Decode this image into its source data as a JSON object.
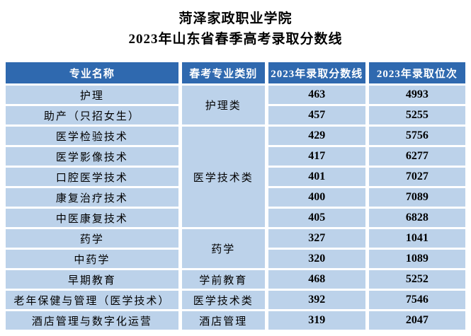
{
  "title": {
    "line1": "菏泽家政职业学院",
    "line2": "2023年山东省春季高考录取分数线"
  },
  "colors": {
    "header_bg": "#2F69AF",
    "header_text": "#FFFFFF",
    "cell_bg": "#BCD2EA",
    "cell_text": "#000000",
    "gridline": "#FFFFFF"
  },
  "table": {
    "headers": [
      "专业名称",
      "春考专业类别",
      "2023年录取分数线",
      "2023年录取位次"
    ],
    "rows": [
      {
        "major": "护理",
        "category": "护理类",
        "category_rowspan": 2,
        "score": "463",
        "rank": "4993"
      },
      {
        "major": "助产（只招女生）",
        "score": "457",
        "rank": "5255"
      },
      {
        "major": "医学检验技术",
        "category": "医学技术类",
        "category_rowspan": 5,
        "score": "429",
        "rank": "5756"
      },
      {
        "major": "医学影像技术",
        "score": "417",
        "rank": "6277"
      },
      {
        "major": "口腔医学技术",
        "score": "401",
        "rank": "7027"
      },
      {
        "major": "康复治疗技术",
        "score": "400",
        "rank": "7089"
      },
      {
        "major": "中医康复技术",
        "score": "405",
        "rank": "6828"
      },
      {
        "major": "药学",
        "category": "药学",
        "category_rowspan": 2,
        "score": "327",
        "rank": "1041"
      },
      {
        "major": "中药学",
        "score": "320",
        "rank": "1089"
      },
      {
        "major": "早期教育",
        "category": "学前教育",
        "category_rowspan": 1,
        "score": "468",
        "rank": "5252"
      },
      {
        "major": "老年保健与管理（医学技术）",
        "category": "医学技术类",
        "category_rowspan": 1,
        "score": "392",
        "rank": "7546"
      },
      {
        "major": "酒店管理与数字化运营",
        "category": "酒店管理",
        "category_rowspan": 1,
        "score": "319",
        "rank": "2047"
      }
    ]
  }
}
